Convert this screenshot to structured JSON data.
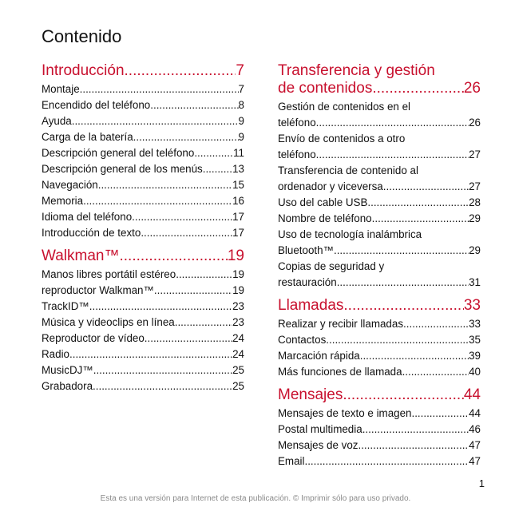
{
  "page_title": "Contenido",
  "page_number": "1",
  "footer": "Esta es una versión para Internet de esta publicación. © Imprimir sólo para uso privado.",
  "colors": {
    "accent": "#c8102e",
    "text": "#111111",
    "footer": "#8a8a8a"
  },
  "left_sections": [
    {
      "title": "Introducción",
      "page": "7",
      "entries": [
        {
          "label": "Montaje",
          "page": "7"
        },
        {
          "label": "Encendido del teléfono",
          "page": "8"
        },
        {
          "label": "Ayuda",
          "page": "9"
        },
        {
          "label": "Carga de la batería",
          "page": "9"
        },
        {
          "label": "Descripción general del teléfono",
          "page": "11"
        },
        {
          "label": "Descripción general de los menús",
          "page": "13"
        },
        {
          "label": "Navegación",
          "page": "15"
        },
        {
          "label": "Memoria",
          "page": "16"
        },
        {
          "label": "Idioma del teléfono",
          "page": "17"
        },
        {
          "label": "Introducción de texto",
          "page": "17"
        }
      ]
    },
    {
      "title": "Walkman™ ",
      "page": "19",
      "entries": [
        {
          "label": "Manos libres portátil estéreo",
          "page": "19"
        },
        {
          "label": "reproductor Walkman™",
          "page": "19"
        },
        {
          "label": "TrackID™",
          "page": "23"
        },
        {
          "label": "Música y videoclips en línea",
          "page": "23"
        },
        {
          "label": "Reproductor de vídeo",
          "page": "24"
        },
        {
          "label": "Radio",
          "page": "24"
        },
        {
          "label": "MusicDJ™",
          "page": "25"
        },
        {
          "label": "Grabadora ",
          "page": "25"
        }
      ]
    }
  ],
  "right_sections": [
    {
      "title_line1": "Transferencia y gestión",
      "title_line2": "de contenidos",
      "page": "26",
      "entries": [
        {
          "line1": "Gestión de contenidos en el",
          "label": "teléfono",
          "page": "26"
        },
        {
          "line1": "Envío de contenidos a otro",
          "label": "teléfono",
          "page": "27"
        },
        {
          "line1": "Transferencia de contenido al",
          "label": "ordenador y viceversa",
          "page": "27"
        },
        {
          "label": "Uso del cable USB",
          "page": "28"
        },
        {
          "label": "Nombre de teléfono",
          "page": "29"
        },
        {
          "line1": "Uso de tecnología inalámbrica",
          "label": "Bluetooth™",
          "page": "29"
        },
        {
          "line1": "Copias de seguridad y",
          "label": "restauración",
          "page": "31"
        }
      ]
    },
    {
      "title": "Llamadas",
      "page": "33",
      "entries": [
        {
          "label": "Realizar y recibir llamadas",
          "page": "33"
        },
        {
          "label": "Contactos",
          "page": "35"
        },
        {
          "label": "Marcación rápida",
          "page": "39"
        },
        {
          "label": "Más funciones de llamada",
          "page": "40"
        }
      ]
    },
    {
      "title": "Mensajes",
      "page": "44",
      "entries": [
        {
          "label": "Mensajes de texto e imagen",
          "page": "44"
        },
        {
          "label": "Postal multimedia",
          "page": "46"
        },
        {
          "label": "Mensajes de voz",
          "page": "47"
        },
        {
          "label": "Email",
          "page": "47"
        }
      ]
    }
  ]
}
